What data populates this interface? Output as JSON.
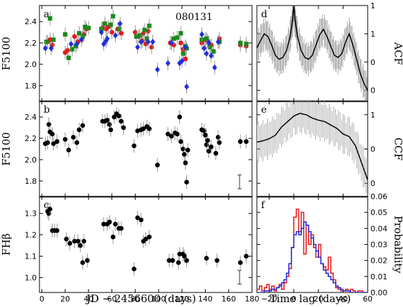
{
  "figure": {
    "id_label": "080131",
    "xlabel_left": "JD  −  2456600 (days)",
    "xlabel_right": "Time lag (days)"
  },
  "chart_data": [
    {
      "type": "scatter",
      "panel": "a",
      "ylabel": "F5100",
      "xlim": [
        -2,
        180
      ],
      "ylim": [
        1.65,
        2.55
      ],
      "xticks": [
        0,
        20,
        40,
        60,
        80,
        100,
        120,
        140,
        160,
        180
      ],
      "yticks": [
        1.8,
        2.0,
        2.2,
        2.4
      ],
      "series": [
        {
          "marker": "circle",
          "color": "#e41a1c",
          "points": [
            [
              5,
              2.21
            ],
            [
              7,
              2.23
            ],
            [
              9,
              2.18
            ],
            [
              20,
              2.11
            ],
            [
              22,
              2.13
            ],
            [
              28,
              2.26
            ],
            [
              31,
              2.21
            ],
            [
              36,
              2.28
            ],
            [
              38,
              2.33
            ],
            [
              52,
              2.34
            ],
            [
              55,
              2.33
            ],
            [
              57,
              2.35
            ],
            [
              60,
              2.3
            ],
            [
              65,
              2.33
            ],
            [
              68,
              2.29
            ],
            [
              80,
              2.3
            ],
            [
              83,
              2.26
            ],
            [
              86,
              2.22
            ],
            [
              87,
              2.29
            ],
            [
              89,
              2.19
            ],
            [
              91,
              2.31
            ],
            [
              94,
              2.16
            ],
            [
              110,
              2.2
            ],
            [
              113,
              2.18
            ],
            [
              119,
              2.2
            ],
            [
              121,
              2.14
            ],
            [
              123,
              2.05
            ],
            [
              137,
              2.2
            ],
            [
              140,
              2.23
            ],
            [
              142,
              2.22
            ],
            [
              145,
              2.18
            ],
            [
              152,
              2.24
            ],
            [
              170,
              2.18
            ],
            [
              175,
              2.17
            ]
          ]
        },
        {
          "marker": "square",
          "color": "#1a8a1a",
          "points": [
            [
              4,
              2.21
            ],
            [
              7,
              2.43
            ],
            [
              10,
              2.23
            ],
            [
              20,
              2.28
            ],
            [
              23,
              2.06
            ],
            [
              26,
              2.14
            ],
            [
              29,
              2.17
            ],
            [
              32,
              2.29
            ],
            [
              35,
              2.26
            ],
            [
              37,
              2.35
            ],
            [
              40,
              2.34
            ],
            [
              51,
              2.33
            ],
            [
              54,
              2.38
            ],
            [
              59,
              2.37
            ],
            [
              61,
              2.45
            ],
            [
              66,
              2.33
            ],
            [
              81,
              2.26
            ],
            [
              84,
              2.27
            ],
            [
              88,
              2.32
            ],
            [
              90,
              2.24
            ],
            [
              92,
              2.36
            ],
            [
              113,
              2.24
            ],
            [
              116,
              2.25
            ],
            [
              119,
              2.29
            ],
            [
              121,
              2.1
            ],
            [
              123,
              2.17
            ],
            [
              124,
              2.15
            ],
            [
              137,
              2.23
            ],
            [
              141,
              2.24
            ],
            [
              144,
              2.16
            ],
            [
              147,
              2.12
            ],
            [
              152,
              2.21
            ],
            [
              170,
              2.2
            ],
            [
              175,
              2.19
            ]
          ]
        },
        {
          "marker": "diamond",
          "color": "#1f2fdd",
          "points": [
            [
              3,
              2.15
            ],
            [
              8,
              2.15
            ],
            [
              25,
              2.19
            ],
            [
              30,
              2.19
            ],
            [
              34,
              2.23
            ],
            [
              51,
              2.3
            ],
            [
              53,
              2.19
            ],
            [
              55,
              2.22
            ],
            [
              56,
              2.24
            ],
            [
              63,
              2.27
            ],
            [
              67,
              2.38
            ],
            [
              82,
              2.16
            ],
            [
              85,
              2.21
            ],
            [
              91,
              2.21
            ],
            [
              95,
              2.21
            ],
            [
              99,
              1.95
            ],
            [
              108,
              2.01
            ],
            [
              111,
              2.2
            ],
            [
              118,
              2.01
            ],
            [
              120,
              2.03
            ],
            [
              123,
              2.16
            ],
            [
              124,
              1.79
            ],
            [
              137,
              2.28
            ],
            [
              139,
              2.15
            ],
            [
              141,
              2.1
            ],
            [
              143,
              2.2
            ],
            [
              145,
              2.08
            ],
            [
              148,
              1.97
            ],
            [
              151,
              2.21
            ]
          ]
        }
      ]
    },
    {
      "type": "scatter",
      "panel": "b",
      "ylabel": "F5100",
      "xlim": [
        -2,
        180
      ],
      "ylim": [
        1.65,
        2.55
      ],
      "xticks": [
        0,
        20,
        40,
        60,
        80,
        100,
        120,
        140,
        160,
        180
      ],
      "yticks": [
        1.8,
        2.0,
        2.2,
        2.4
      ],
      "series": [
        {
          "marker": "circle",
          "color": "#000000",
          "points": [
            [
              3,
              2.15
            ],
            [
              5,
              2.16
            ],
            [
              6,
              2.33
            ],
            [
              7,
              2.26
            ],
            [
              9,
              2.24
            ],
            [
              10,
              2.15
            ],
            [
              13,
              2.17
            ],
            [
              20,
              2.19
            ],
            [
              23,
              2.09
            ],
            [
              27,
              2.21
            ],
            [
              30,
              2.16
            ],
            [
              32,
              2.28
            ],
            [
              35,
              2.32
            ],
            [
              52,
              2.36
            ],
            [
              54,
              2.36
            ],
            [
              56,
              2.37
            ],
            [
              58,
              2.33
            ],
            [
              59,
              2.28
            ],
            [
              62,
              2.4
            ],
            [
              64,
              2.43
            ],
            [
              66,
              2.41
            ],
            [
              68,
              2.36
            ],
            [
              70,
              2.3
            ],
            [
              79,
              2.13
            ],
            [
              82,
              2.27
            ],
            [
              85,
              2.28
            ],
            [
              87,
              2.29
            ],
            [
              90,
              2.31
            ],
            [
              92,
              2.29
            ],
            [
              99,
              1.95
            ],
            [
              108,
              2.24
            ],
            [
              111,
              2.22
            ],
            [
              114,
              2.25
            ],
            [
              116,
              2.24
            ],
            [
              118,
              2.4
            ],
            [
              119,
              2.17
            ],
            [
              121,
              2.1
            ],
            [
              122,
              2.05
            ],
            [
              123,
              1.97
            ],
            [
              124,
              1.79
            ],
            [
              125,
              2.09
            ],
            [
              137,
              2.28
            ],
            [
              139,
              2.27
            ],
            [
              140,
              2.23
            ],
            [
              141,
              2.14
            ],
            [
              142,
              2.18
            ],
            [
              143,
              2.08
            ],
            [
              145,
              2.12
            ],
            [
              149,
              2.06
            ],
            [
              151,
              2.21
            ],
            [
              152,
              2.16
            ],
            [
              170,
              2.17
            ],
            [
              175,
              2.17
            ]
          ]
        }
      ]
    },
    {
      "type": "scatter",
      "panel": "c",
      "ylabel": "FHβ",
      "xlim": [
        -2,
        180
      ],
      "ylim": [
        0.93,
        1.38
      ],
      "xticks": [
        0,
        20,
        40,
        60,
        80,
        100,
        120,
        140,
        160,
        180
      ],
      "yticks": [
        1.0,
        1.1,
        1.2,
        1.3
      ],
      "series": [
        {
          "marker": "circle",
          "color": "#000000",
          "points": [
            [
              5,
              1.31
            ],
            [
              6,
              1.3
            ],
            [
              7,
              1.32
            ],
            [
              9,
              1.22
            ],
            [
              11,
              1.22
            ],
            [
              13,
              1.22
            ],
            [
              21,
              1.18
            ],
            [
              24,
              1.16
            ],
            [
              28,
              1.17
            ],
            [
              31,
              1.17
            ],
            [
              33,
              1.15
            ],
            [
              35,
              1.07
            ],
            [
              36,
              1.17
            ],
            [
              39,
              1.08
            ],
            [
              53,
              1.25
            ],
            [
              56,
              1.25
            ],
            [
              58,
              1.26
            ],
            [
              61,
              1.19
            ],
            [
              63,
              1.25
            ],
            [
              66,
              1.23
            ],
            [
              68,
              1.23
            ],
            [
              79,
              1.04
            ],
            [
              82,
              1.28
            ],
            [
              85,
              1.27
            ],
            [
              87,
              1.17
            ],
            [
              89,
              1.18
            ],
            [
              92,
              1.19
            ],
            [
              109,
              1.08
            ],
            [
              112,
              1.08
            ],
            [
              117,
              1.07
            ],
            [
              118,
              1.11
            ],
            [
              121,
              1.11
            ],
            [
              122,
              1.1
            ],
            [
              124,
              1.08
            ],
            [
              141,
              1.09
            ],
            [
              150,
              1.08
            ],
            [
              170,
              1.07
            ],
            [
              175,
              1.1
            ]
          ]
        }
      ]
    },
    {
      "type": "line",
      "panel": "d",
      "ylabel": "ACF",
      "xlim": [
        -30,
        60
      ],
      "ylim": [
        -0.7,
        1.0
      ],
      "xticks": [
        -20,
        0,
        20,
        40,
        60
      ],
      "yticks": [
        -0.5,
        0.0,
        0.5,
        1.0
      ],
      "series": [
        {
          "x": [
            -30,
            -27,
            -24,
            -21,
            -18,
            -15,
            -12,
            -9,
            -6,
            -3,
            -1,
            0,
            1,
            3,
            6,
            9,
            12,
            15,
            18,
            21,
            24,
            27,
            30,
            33,
            36,
            39,
            42,
            45,
            48,
            51,
            54,
            57,
            60
          ],
          "values": [
            0.25,
            0.38,
            0.5,
            0.45,
            0.3,
            0.12,
            0.05,
            0.08,
            0.2,
            0.45,
            0.75,
            1.0,
            0.75,
            0.45,
            0.2,
            0.08,
            0.05,
            0.12,
            0.3,
            0.48,
            0.58,
            0.45,
            0.28,
            0.12,
            0.08,
            0.15,
            0.35,
            0.5,
            0.3,
            0.05,
            -0.2,
            -0.38,
            -0.5
          ]
        }
      ]
    },
    {
      "type": "line",
      "panel": "e",
      "ylabel": "CCF",
      "xlim": [
        -30,
        60
      ],
      "ylim": [
        -0.7,
        0.7
      ],
      "xticks": [
        -20,
        0,
        20,
        40,
        60
      ],
      "yticks": [
        -0.5,
        0.0,
        0.5
      ],
      "series": [
        {
          "x": [
            -30,
            -25,
            -20,
            -15,
            -10,
            -5,
            0,
            5,
            10,
            15,
            20,
            25,
            30,
            35,
            40,
            45,
            50,
            55,
            60
          ],
          "values": [
            0.1,
            0.12,
            0.15,
            0.2,
            0.32,
            0.4,
            0.48,
            0.52,
            0.5,
            0.45,
            0.42,
            0.4,
            0.35,
            0.3,
            0.22,
            0.18,
            0.05,
            -0.2,
            -0.45
          ]
        }
      ]
    },
    {
      "type": "bar",
      "panel": "f",
      "ylabel": "Probability",
      "xlim": [
        -30,
        60
      ],
      "ylim": [
        0.0,
        0.06
      ],
      "xticks": [
        -20,
        0,
        20,
        40,
        60
      ],
      "yticks": [
        0.0,
        0.01,
        0.02,
        0.03,
        0.04,
        0.05,
        0.06
      ],
      "bin_width": 2,
      "x": [
        -30,
        -28,
        -26,
        -24,
        -22,
        -20,
        -18,
        -16,
        -14,
        -12,
        -10,
        -8,
        -6,
        -4,
        -2,
        0,
        2,
        4,
        6,
        8,
        10,
        12,
        14,
        16,
        18,
        20,
        22,
        24,
        26,
        28,
        30,
        32,
        34,
        36,
        38,
        40,
        42,
        44,
        46,
        48,
        50,
        52,
        54,
        56,
        58
      ],
      "series": [
        {
          "color": "#e41a1c",
          "values": [
            0.002,
            0.004,
            0.001,
            0.003,
            0.005,
            0.002,
            0.004,
            0.001,
            0.003,
            0.005,
            0.002,
            0.006,
            0.01,
            0.015,
            0.028,
            0.047,
            0.052,
            0.038,
            0.05,
            0.024,
            0.042,
            0.03,
            0.036,
            0.028,
            0.022,
            0.03,
            0.018,
            0.016,
            0.014,
            0.022,
            0.012,
            0.008,
            0.003,
            0.002,
            0.001,
            0.001,
            0.002,
            0.001,
            0.002,
            0.001,
            0.0,
            0.001,
            0.001,
            0.0,
            0.0
          ]
        },
        {
          "color": "#1f2fdd",
          "values": [
            0.0,
            0.0,
            0.0,
            0.001,
            0.001,
            0.001,
            0.002,
            0.002,
            0.003,
            0.004,
            0.006,
            0.008,
            0.012,
            0.018,
            0.028,
            0.036,
            0.038,
            0.036,
            0.04,
            0.044,
            0.042,
            0.038,
            0.034,
            0.03,
            0.026,
            0.022,
            0.018,
            0.014,
            0.012,
            0.01,
            0.008,
            0.006,
            0.004,
            0.003,
            0.002,
            0.001,
            0.001,
            0.001,
            0.0,
            0.0,
            0.0,
            0.0,
            0.0,
            0.0,
            0.0
          ]
        }
      ]
    }
  ]
}
